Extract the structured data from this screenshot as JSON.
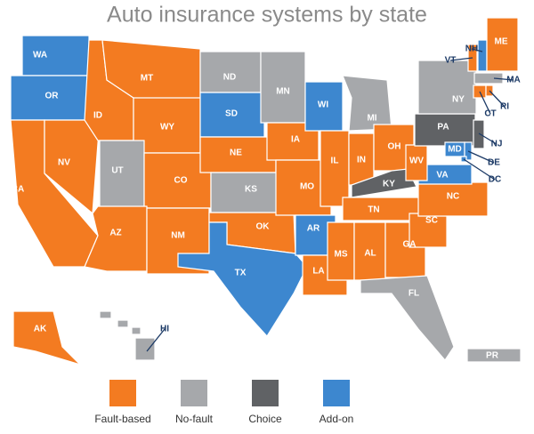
{
  "title": "Auto insurance systems by state",
  "legend": [
    {
      "label": "Fault-based",
      "color": "#f37b21"
    },
    {
      "label": "No-fault",
      "color": "#a6a8ab"
    },
    {
      "label": "Choice",
      "color": "#606265"
    },
    {
      "label": "Add-on",
      "color": "#3d87cf"
    }
  ],
  "states": [
    {
      "code": "WA",
      "system": "Add-on"
    },
    {
      "code": "OR",
      "system": "Add-on"
    },
    {
      "code": "CA",
      "system": "Fault-based"
    },
    {
      "code": "NV",
      "system": "Fault-based"
    },
    {
      "code": "ID",
      "system": "Fault-based"
    },
    {
      "code": "MT",
      "system": "Fault-based"
    },
    {
      "code": "WY",
      "system": "Fault-based"
    },
    {
      "code": "UT",
      "system": "No-fault"
    },
    {
      "code": "CO",
      "system": "Fault-based"
    },
    {
      "code": "AZ",
      "system": "Fault-based"
    },
    {
      "code": "NM",
      "system": "Fault-based"
    },
    {
      "code": "ND",
      "system": "No-fault"
    },
    {
      "code": "SD",
      "system": "Add-on"
    },
    {
      "code": "NE",
      "system": "Fault-based"
    },
    {
      "code": "KS",
      "system": "No-fault"
    },
    {
      "code": "OK",
      "system": "Fault-based"
    },
    {
      "code": "TX",
      "system": "Add-on"
    },
    {
      "code": "MN",
      "system": "No-fault"
    },
    {
      "code": "IA",
      "system": "Fault-based"
    },
    {
      "code": "MO",
      "system": "Fault-based"
    },
    {
      "code": "AR",
      "system": "Add-on"
    },
    {
      "code": "LA",
      "system": "Fault-based"
    },
    {
      "code": "WI",
      "system": "Add-on"
    },
    {
      "code": "IL",
      "system": "Fault-based"
    },
    {
      "code": "MI",
      "system": "No-fault"
    },
    {
      "code": "IN",
      "system": "Fault-based"
    },
    {
      "code": "OH",
      "system": "Fault-based"
    },
    {
      "code": "KY",
      "system": "Choice"
    },
    {
      "code": "TN",
      "system": "Fault-based"
    },
    {
      "code": "MS",
      "system": "Fault-based"
    },
    {
      "code": "AL",
      "system": "Fault-based"
    },
    {
      "code": "GA",
      "system": "Fault-based"
    },
    {
      "code": "SC",
      "system": "Fault-based"
    },
    {
      "code": "NC",
      "system": "Fault-based"
    },
    {
      "code": "FL",
      "system": "No-fault"
    },
    {
      "code": "VA",
      "system": "Add-on"
    },
    {
      "code": "WV",
      "system": "Fault-based"
    },
    {
      "code": "PA",
      "system": "Choice"
    },
    {
      "code": "NY",
      "system": "No-fault"
    },
    {
      "code": "MD",
      "system": "Add-on"
    },
    {
      "code": "DE",
      "system": "Add-on"
    },
    {
      "code": "NJ",
      "system": "Choice"
    },
    {
      "code": "VT",
      "system": "Fault-based"
    },
    {
      "code": "NH",
      "system": "Add-on"
    },
    {
      "code": "ME",
      "system": "Fault-based"
    },
    {
      "code": "MA",
      "system": "No-fault"
    },
    {
      "code": "CT",
      "system": "Fault-based"
    },
    {
      "code": "RI",
      "system": "Fault-based"
    },
    {
      "code": "DC",
      "system": "Add-on"
    },
    {
      "code": "AK",
      "system": "Fault-based"
    },
    {
      "code": "HI",
      "system": "No-fault"
    },
    {
      "code": "PR",
      "system": "No-fault"
    }
  ]
}
